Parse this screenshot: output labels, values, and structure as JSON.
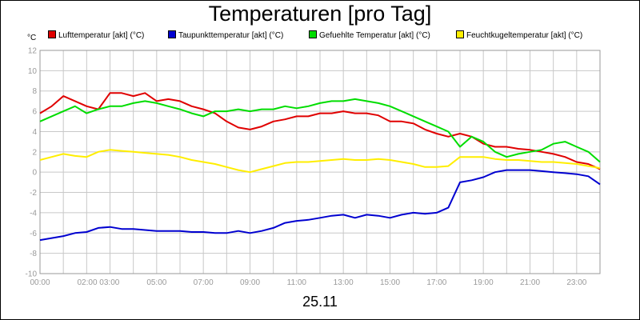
{
  "chart_data": {
    "type": "line",
    "title": "Temperaturen [pro Tag]",
    "y_unit": "°C",
    "date_label": "25.11",
    "x_tick_labels": [
      "00:00",
      "02:00 03:00",
      "05:00",
      "07:00",
      "09:00",
      "11:00",
      "13:00",
      "15:00",
      "17:00",
      "19:00",
      "21:00",
      "23:00"
    ],
    "x_tick_hours": [
      0,
      2.5,
      5,
      7,
      9,
      11,
      13,
      15,
      17,
      19,
      21,
      23
    ],
    "xlim": [
      0,
      24
    ],
    "ylim": [
      -10,
      12
    ],
    "y_ticks": [
      -10,
      -8,
      -6,
      -4,
      -2,
      0,
      2,
      4,
      6,
      8,
      10,
      12
    ],
    "grid": true,
    "legend_position": "top",
    "x": [
      0,
      0.5,
      1,
      1.5,
      2,
      2.5,
      3,
      3.5,
      4,
      4.5,
      5,
      5.5,
      6,
      6.5,
      7,
      7.5,
      8,
      8.5,
      9,
      9.5,
      10,
      10.5,
      11,
      11.5,
      12,
      12.5,
      13,
      13.5,
      14,
      14.5,
      15,
      15.5,
      16,
      16.5,
      17,
      17.5,
      18,
      18.5,
      19,
      19.5,
      20,
      20.5,
      21,
      21.5,
      22,
      22.5,
      23,
      23.5,
      24
    ],
    "series": [
      {
        "name": "Lufttemperatur [akt] (°C)",
        "color": "#e00000",
        "values": [
          5.8,
          6.5,
          7.5,
          7.0,
          6.5,
          6.2,
          7.8,
          7.8,
          7.5,
          7.8,
          7.0,
          7.2,
          7.0,
          6.5,
          6.2,
          5.8,
          5.0,
          4.4,
          4.2,
          4.5,
          5.0,
          5.2,
          5.5,
          5.5,
          5.8,
          5.8,
          6.0,
          5.8,
          5.8,
          5.6,
          5.0,
          5.0,
          4.8,
          4.2,
          3.8,
          3.5,
          3.8,
          3.5,
          2.8,
          2.5,
          2.5,
          2.3,
          2.2,
          2.0,
          1.8,
          1.5,
          1.0,
          0.8,
          0.3
        ]
      },
      {
        "name": "Taupunkttemperatur [akt] (°C)",
        "color": "#0000d0",
        "values": [
          -6.7,
          -6.5,
          -6.3,
          -6.0,
          -5.9,
          -5.5,
          -5.4,
          -5.6,
          -5.6,
          -5.7,
          -5.8,
          -5.8,
          -5.8,
          -5.9,
          -5.9,
          -6.0,
          -6.0,
          -5.8,
          -6.0,
          -5.8,
          -5.5,
          -5.0,
          -4.8,
          -4.7,
          -4.5,
          -4.3,
          -4.2,
          -4.5,
          -4.2,
          -4.3,
          -4.5,
          -4.2,
          -4.0,
          -4.1,
          -4.0,
          -3.5,
          -1.0,
          -0.8,
          -0.5,
          0.0,
          0.2,
          0.2,
          0.2,
          0.1,
          0.0,
          -0.1,
          -0.2,
          -0.4,
          -1.2
        ]
      },
      {
        "name": "Gefuehlte Temperatur [akt] (°C)",
        "color": "#00dd00",
        "values": [
          5.0,
          5.5,
          6.0,
          6.5,
          5.8,
          6.2,
          6.5,
          6.5,
          6.8,
          7.0,
          6.8,
          6.5,
          6.2,
          5.8,
          5.5,
          6.0,
          6.0,
          6.2,
          6.0,
          6.2,
          6.2,
          6.5,
          6.3,
          6.5,
          6.8,
          7.0,
          7.0,
          7.2,
          7.0,
          6.8,
          6.5,
          6.0,
          5.5,
          5.0,
          4.5,
          4.0,
          2.5,
          3.5,
          3.0,
          2.0,
          1.5,
          1.8,
          2.0,
          2.2,
          2.8,
          3.0,
          2.5,
          2.0,
          1.0
        ]
      },
      {
        "name": "Feuchtkugeltemperatur [akt] (°C)",
        "color": "#ffee00",
        "values": [
          1.2,
          1.5,
          1.8,
          1.6,
          1.5,
          2.0,
          2.2,
          2.1,
          2.0,
          1.9,
          1.8,
          1.7,
          1.5,
          1.2,
          1.0,
          0.8,
          0.5,
          0.2,
          0.0,
          0.3,
          0.6,
          0.9,
          1.0,
          1.0,
          1.1,
          1.2,
          1.3,
          1.2,
          1.2,
          1.3,
          1.2,
          1.0,
          0.8,
          0.5,
          0.5,
          0.6,
          1.5,
          1.5,
          1.5,
          1.3,
          1.2,
          1.2,
          1.1,
          1.0,
          1.0,
          0.9,
          0.8,
          0.6,
          0.4
        ]
      }
    ]
  }
}
